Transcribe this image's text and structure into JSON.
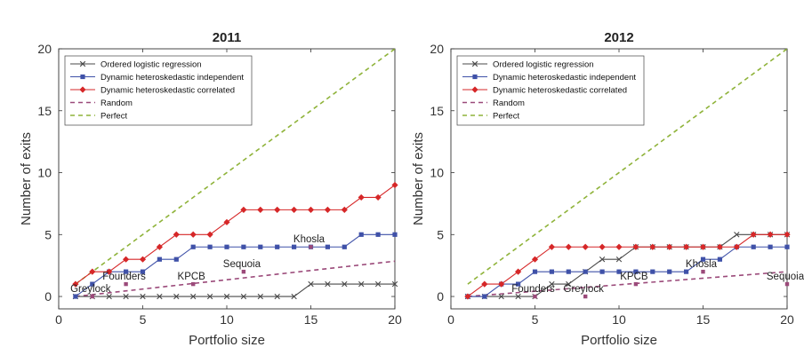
{
  "chart_data": [
    {
      "type": "line",
      "title": "2011",
      "xlabel": "Portfolio size",
      "ylabel": "Number of exits",
      "xlim": [
        0,
        20
      ],
      "ylim": [
        -1,
        20
      ],
      "xticks": [
        0,
        5,
        10,
        15,
        20
      ],
      "yticks": [
        0,
        5,
        10,
        15,
        20
      ],
      "legend_position": "top-left",
      "series": [
        {
          "name": "Ordered logistic regression",
          "color": "#4a4a4a",
          "marker": "x",
          "dash": "solid",
          "x": [
            1,
            2,
            3,
            4,
            5,
            6,
            7,
            8,
            9,
            10,
            11,
            12,
            13,
            14,
            15,
            16,
            17,
            18,
            19,
            20
          ],
          "y": [
            0,
            0,
            0,
            0,
            0,
            0,
            0,
            0,
            0,
            0,
            0,
            0,
            0,
            0,
            1,
            1,
            1,
            1,
            1,
            1
          ]
        },
        {
          "name": "Dynamic heteroskedastic independent",
          "color": "#3f51a8",
          "marker": "square",
          "dash": "solid",
          "x": [
            1,
            2,
            3,
            4,
            5,
            6,
            7,
            8,
            9,
            10,
            11,
            12,
            13,
            14,
            15,
            16,
            17,
            18,
            19,
            20
          ],
          "y": [
            0,
            1,
            2,
            2,
            2,
            3,
            3,
            4,
            4,
            4,
            4,
            4,
            4,
            4,
            4,
            4,
            4,
            5,
            5,
            5
          ]
        },
        {
          "name": "Dynamic heteroskedastic correlated",
          "color": "#d62728",
          "marker": "diamond",
          "dash": "solid",
          "x": [
            1,
            2,
            3,
            4,
            5,
            6,
            7,
            8,
            9,
            10,
            11,
            12,
            13,
            14,
            15,
            16,
            17,
            18,
            19,
            20
          ],
          "y": [
            1,
            2,
            2,
            3,
            3,
            4,
            5,
            5,
            5,
            6,
            7,
            7,
            7,
            7,
            7,
            7,
            7,
            8,
            8,
            9
          ]
        },
        {
          "name": "Random",
          "color": "#9b4a7a",
          "marker": "none",
          "dash": "dashed",
          "x": [
            1,
            20
          ],
          "y": [
            0,
            2.85
          ]
        },
        {
          "name": "Perfect",
          "color": "#8fb33a",
          "marker": "none",
          "dash": "dashed",
          "x": [
            1,
            20
          ],
          "y": [
            1,
            20
          ]
        }
      ],
      "annotations": [
        {
          "text": "Greylock",
          "x": 2,
          "y": 0,
          "marker_color": "#9b4a7a"
        },
        {
          "text": "Founders",
          "x": 4,
          "y": 1,
          "marker_color": "#9b4a7a"
        },
        {
          "text": "KPCB",
          "x": 8,
          "y": 1,
          "marker_color": "#9b4a7a"
        },
        {
          "text": "Sequoia",
          "x": 11,
          "y": 2,
          "marker_color": "#9b4a7a"
        },
        {
          "text": "Khosla",
          "x": 15,
          "y": 4,
          "marker_color": "#9b4a7a"
        }
      ]
    },
    {
      "type": "line",
      "title": "2012",
      "xlabel": "Portfolio size",
      "ylabel": "Number of exits",
      "xlim": [
        0,
        20
      ],
      "ylim": [
        -1,
        20
      ],
      "xticks": [
        0,
        5,
        10,
        15,
        20
      ],
      "yticks": [
        0,
        5,
        10,
        15,
        20
      ],
      "legend_position": "top-left",
      "series": [
        {
          "name": "Ordered logistic regression",
          "color": "#4a4a4a",
          "marker": "x",
          "dash": "solid",
          "x": [
            1,
            2,
            3,
            4,
            5,
            6,
            7,
            8,
            9,
            10,
            11,
            12,
            13,
            14,
            15,
            16,
            17,
            18,
            19,
            20
          ],
          "y": [
            0,
            0,
            0,
            0,
            0,
            1,
            1,
            2,
            3,
            3,
            4,
            4,
            4,
            4,
            4,
            4,
            5,
            5,
            5,
            5
          ]
        },
        {
          "name": "Dynamic heteroskedastic independent",
          "color": "#3f51a8",
          "marker": "square",
          "dash": "solid",
          "x": [
            1,
            2,
            3,
            4,
            5,
            6,
            7,
            8,
            9,
            10,
            11,
            12,
            13,
            14,
            15,
            16,
            17,
            18,
            19,
            20
          ],
          "y": [
            0,
            0,
            1,
            1,
            2,
            2,
            2,
            2,
            2,
            2,
            2,
            2,
            2,
            2,
            3,
            3,
            4,
            4,
            4,
            4
          ]
        },
        {
          "name": "Dynamic heteroskedastic correlated",
          "color": "#d62728",
          "marker": "diamond",
          "dash": "solid",
          "x": [
            1,
            2,
            3,
            4,
            5,
            6,
            7,
            8,
            9,
            10,
            11,
            12,
            13,
            14,
            15,
            16,
            17,
            18,
            19,
            20
          ],
          "y": [
            0,
            1,
            1,
            2,
            3,
            4,
            4,
            4,
            4,
            4,
            4,
            4,
            4,
            4,
            4,
            4,
            4,
            5,
            5,
            5
          ]
        },
        {
          "name": "Random",
          "color": "#9b4a7a",
          "marker": "none",
          "dash": "dashed",
          "x": [
            1,
            20
          ],
          "y": [
            0,
            2.0
          ]
        },
        {
          "name": "Perfect",
          "color": "#8fb33a",
          "marker": "none",
          "dash": "dashed",
          "x": [
            1,
            20
          ],
          "y": [
            1,
            20
          ]
        }
      ],
      "annotations": [
        {
          "text": "Founders",
          "x": 5,
          "y": 0,
          "marker_color": "#9b4a7a"
        },
        {
          "text": "Greylock",
          "x": 8,
          "y": 0,
          "marker_color": "#9b4a7a"
        },
        {
          "text": "KPCB",
          "x": 11,
          "y": 1,
          "marker_color": "#9b4a7a"
        },
        {
          "text": "Khosla",
          "x": 15,
          "y": 2,
          "marker_color": "#9b4a7a"
        },
        {
          "text": "Sequoia",
          "x": 20,
          "y": 1,
          "marker_color": "#9b4a7a"
        }
      ]
    }
  ]
}
